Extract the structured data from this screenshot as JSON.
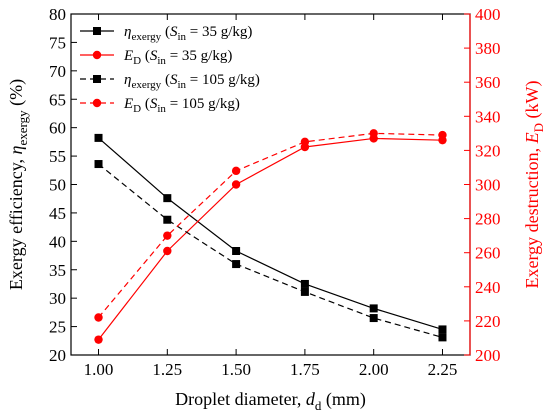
{
  "chart_data": {
    "type": "line",
    "x": [
      1.0,
      1.25,
      1.5,
      1.75,
      2.0,
      2.25
    ],
    "xticks": [
      "1.00",
      "1.25",
      "1.50",
      "1.75",
      "2.00",
      "2.25"
    ],
    "xlim": [
      0.9,
      2.35
    ],
    "xlabel": {
      "text": "Droplet diameter, ",
      "symbol": "d",
      "sub": "d",
      "unit": " (mm)"
    },
    "yleft": {
      "lim": [
        20,
        80
      ],
      "ticks": [
        "20",
        "25",
        "30",
        "35",
        "40",
        "45",
        "50",
        "55",
        "60",
        "65",
        "70",
        "75",
        "80"
      ],
      "label": {
        "text": "Exergy efficiency, ",
        "symbol": "η",
        "sub": "exergy",
        "unit": " (%)"
      },
      "color": "#000000"
    },
    "yright": {
      "lim": [
        200,
        400
      ],
      "ticks": [
        "200",
        "220",
        "240",
        "260",
        "280",
        "300",
        "320",
        "340",
        "360",
        "380",
        "400"
      ],
      "label": {
        "text": "Exergy destruction, ",
        "symbol": "E",
        "sub": "D",
        "unit": " (kW)"
      },
      "color": "#ff0000"
    },
    "legend_position": "top-left",
    "series": [
      {
        "name": "η_exergy (S_in = 35 g/kg)",
        "sym": "η",
        "sub": "exergy",
        "rest": "35 g/kg)",
        "axis": "left",
        "color": "#000000",
        "marker": "square",
        "dash": "solid",
        "values": [
          58.2,
          47.6,
          38.3,
          32.5,
          28.2,
          24.5
        ]
      },
      {
        "name": "E_D (S_in = 35 g/kg)",
        "sym": "E",
        "sub": "D",
        "rest": "35 g/kg)",
        "axis": "right",
        "color": "#ff0000",
        "marker": "circle",
        "dash": "solid",
        "values": [
          209,
          261,
          300,
          322,
          327,
          326
        ]
      },
      {
        "name": "η_exergy (S_in = 105 g/kg)",
        "sym": "η",
        "sub": "exergy",
        "rest": "105 g/kg)",
        "axis": "left",
        "color": "#000000",
        "marker": "square",
        "dash": "dashed",
        "values": [
          53.6,
          43.8,
          36.0,
          31.1,
          26.5,
          23.1
        ]
      },
      {
        "name": "E_D (S_in = 105 g/kg)",
        "sym": "E",
        "sub": "D",
        "rest": "105 g/kg)",
        "axis": "right",
        "color": "#ff0000",
        "marker": "circle",
        "dash": "dashed",
        "values": [
          222,
          270,
          308,
          325,
          330,
          329
        ]
      }
    ]
  }
}
